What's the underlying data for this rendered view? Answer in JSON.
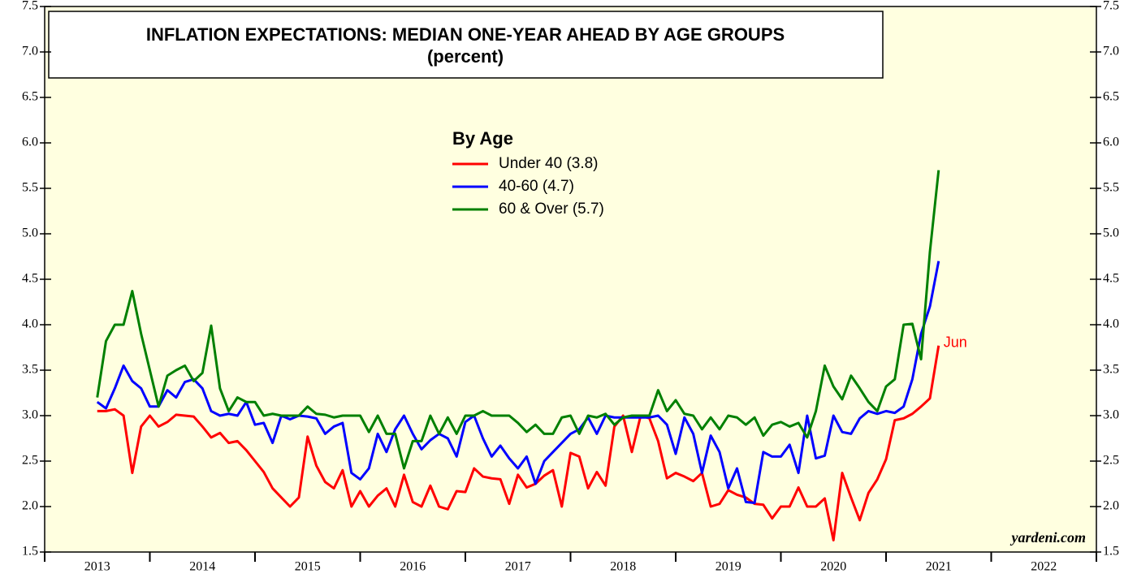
{
  "chart_data": {
    "type": "line",
    "title": "INFLATION EXPECTATIONS: MEDIAN ONE-YEAR AHEAD BY AGE GROUPS",
    "subtitle": "(percent)",
    "legend_title": "By Age",
    "annotation": "Jun",
    "source": "yardeni.com",
    "background": "#ffffe0",
    "xlim": [
      2013,
      2023
    ],
    "xticks": [
      {
        "value": 2013.5,
        "label": "2013"
      },
      {
        "value": 2014.5,
        "label": "2014"
      },
      {
        "value": 2015.5,
        "label": "2015"
      },
      {
        "value": 2016.5,
        "label": "2016"
      },
      {
        "value": 2017.5,
        "label": "2017"
      },
      {
        "value": 2018.5,
        "label": "2018"
      },
      {
        "value": 2019.5,
        "label": "2019"
      },
      {
        "value": 2020.5,
        "label": "2020"
      },
      {
        "value": 2021.5,
        "label": "2021"
      },
      {
        "value": 2022.5,
        "label": "2022"
      }
    ],
    "ylim": [
      1.5,
      7.5
    ],
    "yticks": [
      1.5,
      {
        "value": 2,
        "label": "2.0"
      },
      2.5,
      {
        "value": 3,
        "label": "3.0"
      },
      3.5,
      {
        "value": 4,
        "label": "4.0"
      },
      4.5,
      {
        "value": 5,
        "label": "5.0"
      },
      5.5,
      {
        "value": 6,
        "label": "6.0"
      },
      6.5,
      {
        "value": 7,
        "label": "7.0"
      },
      7.5
    ],
    "y2lim": [
      1.5,
      7.5
    ],
    "y2ticks": [
      1.5,
      {
        "value": 2,
        "label": "2.0"
      },
      2.5,
      {
        "value": 3,
        "label": "3.0"
      },
      3.5,
      {
        "value": 4,
        "label": "4.0"
      },
      4.5,
      {
        "value": 5,
        "label": "5.0"
      },
      5.5,
      {
        "value": 6,
        "label": "6.0"
      },
      6.5,
      {
        "value": 7,
        "label": "7.0"
      },
      7.5
    ],
    "x": [
      2013.5,
      2013.583,
      2013.667,
      2013.75,
      2013.833,
      2013.917,
      2014.0,
      2014.083,
      2014.167,
      2014.25,
      2014.333,
      2014.417,
      2014.5,
      2014.583,
      2014.667,
      2014.75,
      2014.833,
      2014.917,
      2015.0,
      2015.083,
      2015.167,
      2015.25,
      2015.333,
      2015.417,
      2015.5,
      2015.583,
      2015.667,
      2015.75,
      2015.833,
      2015.917,
      2016.0,
      2016.083,
      2016.167,
      2016.25,
      2016.333,
      2016.417,
      2016.5,
      2016.583,
      2016.667,
      2016.75,
      2016.833,
      2016.917,
      2017.0,
      2017.083,
      2017.167,
      2017.25,
      2017.333,
      2017.417,
      2017.5,
      2017.583,
      2017.667,
      2017.75,
      2017.833,
      2017.917,
      2018.0,
      2018.083,
      2018.167,
      2018.25,
      2018.333,
      2018.417,
      2018.5,
      2018.583,
      2018.667,
      2018.75,
      2018.833,
      2018.917,
      2019.0,
      2019.083,
      2019.167,
      2019.25,
      2019.333,
      2019.417,
      2019.5,
      2019.583,
      2019.667,
      2019.75,
      2019.833,
      2019.917,
      2020.0,
      2020.083,
      2020.167,
      2020.25,
      2020.333,
      2020.417,
      2020.5,
      2020.583,
      2020.667,
      2020.75,
      2020.833,
      2020.917,
      2021.0,
      2021.083,
      2021.167,
      2021.25,
      2021.333,
      2021.417,
      2021.5
    ],
    "series": [
      {
        "name": "Under 40 (3.8)",
        "color": "#ff0000",
        "values": [
          3.05,
          3.05,
          3.07,
          3.0,
          2.37,
          2.88,
          3.0,
          2.88,
          2.93,
          3.01,
          3.0,
          2.99,
          2.88,
          2.76,
          2.81,
          2.7,
          2.72,
          2.62,
          2.5,
          2.38,
          2.2,
          2.1,
          2.0,
          2.1,
          2.77,
          2.45,
          2.27,
          2.2,
          2.4,
          2.0,
          2.17,
          2.0,
          2.12,
          2.2,
          2.0,
          2.35,
          2.05,
          2.0,
          2.23,
          2.0,
          1.97,
          2.17,
          2.16,
          2.42,
          2.33,
          2.31,
          2.3,
          2.03,
          2.35,
          2.21,
          2.25,
          2.34,
          2.4,
          2.0,
          2.59,
          2.55,
          2.2,
          2.38,
          2.23,
          2.88,
          3.0,
          2.6,
          3.0,
          2.97,
          2.72,
          2.31,
          2.37,
          2.33,
          2.28,
          2.37,
          2.0,
          2.03,
          2.18,
          2.13,
          2.1,
          2.03,
          2.02,
          1.87,
          2.0,
          2.0,
          2.21,
          2.0,
          2.0,
          2.09,
          1.63,
          2.37,
          2.1,
          1.85,
          2.15,
          2.3,
          2.52,
          2.95,
          2.97,
          3.02,
          3.1,
          3.19,
          3.77
        ]
      },
      {
        "name": "40-60 (4.7)",
        "color": "#0000ff",
        "values": [
          3.15,
          3.08,
          3.3,
          3.55,
          3.38,
          3.3,
          3.1,
          3.1,
          3.28,
          3.2,
          3.37,
          3.4,
          3.3,
          3.05,
          3.0,
          3.02,
          3.0,
          3.15,
          2.9,
          2.92,
          2.7,
          3.0,
          2.96,
          3.0,
          2.99,
          2.97,
          2.8,
          2.88,
          2.92,
          2.37,
          2.3,
          2.42,
          2.8,
          2.6,
          2.85,
          3.0,
          2.8,
          2.63,
          2.73,
          2.8,
          2.75,
          2.55,
          2.93,
          3.0,
          2.75,
          2.55,
          2.67,
          2.53,
          2.42,
          2.55,
          2.25,
          2.5,
          2.6,
          2.7,
          2.8,
          2.85,
          2.98,
          2.8,
          3.0,
          2.98,
          2.98,
          2.98,
          2.98,
          2.98,
          3.0,
          2.9,
          2.58,
          2.98,
          2.8,
          2.37,
          2.78,
          2.6,
          2.2,
          2.42,
          2.05,
          2.04,
          2.6,
          2.55,
          2.55,
          2.68,
          2.37,
          3.0,
          2.53,
          2.56,
          3.0,
          2.82,
          2.8,
          2.97,
          3.05,
          3.02,
          3.05,
          3.03,
          3.1,
          3.4,
          3.9,
          4.2,
          4.7
        ]
      },
      {
        "name": "60 & Over (5.7)",
        "color": "#008000",
        "values": [
          3.2,
          3.82,
          4.0,
          4.0,
          4.37,
          3.9,
          3.5,
          3.1,
          3.44,
          3.5,
          3.55,
          3.38,
          3.47,
          3.99,
          3.3,
          3.05,
          3.2,
          3.15,
          3.15,
          3.0,
          3.02,
          3.0,
          3.0,
          3.0,
          3.1,
          3.02,
          3.01,
          2.98,
          3.0,
          3.0,
          3.0,
          2.82,
          3.0,
          2.8,
          2.8,
          2.42,
          2.72,
          2.72,
          3.0,
          2.8,
          2.98,
          2.8,
          3.0,
          3.0,
          3.05,
          3.0,
          3.0,
          3.0,
          2.92,
          2.82,
          2.9,
          2.8,
          2.8,
          2.98,
          3.0,
          2.8,
          3.0,
          2.98,
          3.02,
          2.9,
          2.98,
          3.0,
          3.0,
          3.0,
          3.28,
          3.05,
          3.17,
          3.02,
          3.0,
          2.85,
          2.98,
          2.85,
          3.0,
          2.98,
          2.9,
          2.98,
          2.78,
          2.9,
          2.93,
          2.88,
          2.92,
          2.76,
          3.05,
          3.55,
          3.32,
          3.18,
          3.44,
          3.3,
          3.15,
          3.05,
          3.32,
          3.4,
          4.0,
          4.01,
          3.62,
          4.8,
          5.7
        ]
      }
    ]
  }
}
